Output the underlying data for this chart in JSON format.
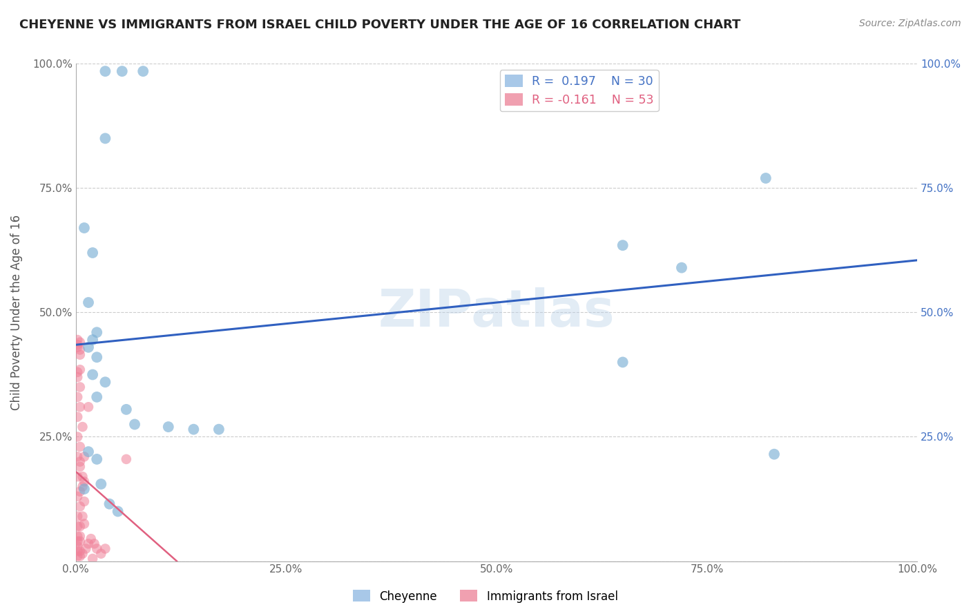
{
  "title": "CHEYENNE VS IMMIGRANTS FROM ISRAEL CHILD POVERTY UNDER THE AGE OF 16 CORRELATION CHART",
  "source": "Source: ZipAtlas.com",
  "ylabel": "Child Poverty Under the Age of 16",
  "xmin": 0.0,
  "xmax": 100.0,
  "ymin": 0.0,
  "ymax": 100.0,
  "x_tick_labels": [
    "0.0%",
    "25.0%",
    "50.0%",
    "75.0%",
    "100.0%"
  ],
  "x_tick_vals": [
    0.0,
    25.0,
    50.0,
    75.0,
    100.0
  ],
  "y_tick_labels": [
    "",
    "25.0%",
    "50.0%",
    "75.0%",
    "100.0%"
  ],
  "y_tick_vals": [
    0.0,
    25.0,
    50.0,
    75.0,
    100.0
  ],
  "y_tick_labels_right": [
    "",
    "25.0%",
    "50.0%",
    "75.0%",
    "100.0%"
  ],
  "legend_entries": [
    {
      "label": "R =  0.197    N = 30",
      "color": "#a8c8e8"
    },
    {
      "label": "R = -0.161    N = 53",
      "color": "#f0a0b0"
    }
  ],
  "legend_labels_bottom": [
    "Cheyenne",
    "Immigrants from Israel"
  ],
  "legend_colors_bottom": [
    "#a8c8e8",
    "#f0a0b0"
  ],
  "watermark": "ZIPatlas",
  "cheyenne_color": "#7bafd4",
  "israel_color": "#f08098",
  "cheyenne_line_color": "#3060c0",
  "israel_line_color": "#e06080",
  "cheyenne_line": [
    0.0,
    43.5,
    100.0,
    60.5
  ],
  "israel_line": [
    0.0,
    18.0,
    12.0,
    0.0
  ],
  "cheyenne_scatter": [
    [
      3.5,
      98.5
    ],
    [
      5.5,
      98.5
    ],
    [
      8.0,
      98.5
    ],
    [
      3.5,
      85.0
    ],
    [
      1.0,
      67.0
    ],
    [
      2.0,
      62.0
    ],
    [
      1.5,
      52.0
    ],
    [
      2.5,
      46.0
    ],
    [
      2.0,
      44.5
    ],
    [
      1.5,
      43.0
    ],
    [
      2.5,
      41.0
    ],
    [
      2.0,
      37.5
    ],
    [
      3.5,
      36.0
    ],
    [
      2.5,
      33.0
    ],
    [
      6.0,
      30.5
    ],
    [
      7.0,
      27.5
    ],
    [
      11.0,
      27.0
    ],
    [
      14.0,
      26.5
    ],
    [
      17.0,
      26.5
    ],
    [
      65.0,
      63.5
    ],
    [
      72.0,
      59.0
    ],
    [
      82.0,
      77.0
    ],
    [
      65.0,
      40.0
    ],
    [
      83.0,
      21.5
    ],
    [
      1.5,
      22.0
    ],
    [
      2.5,
      20.5
    ],
    [
      3.0,
      15.5
    ],
    [
      1.0,
      14.5
    ],
    [
      4.0,
      11.5
    ],
    [
      5.0,
      10.0
    ]
  ],
  "israel_scatter": [
    [
      0.2,
      44.5
    ],
    [
      0.5,
      44.0
    ],
    [
      0.2,
      43.0
    ],
    [
      0.5,
      41.5
    ],
    [
      0.2,
      38.0
    ],
    [
      0.5,
      38.5
    ],
    [
      0.2,
      37.0
    ],
    [
      0.5,
      35.0
    ],
    [
      0.2,
      33.0
    ],
    [
      0.5,
      31.0
    ],
    [
      0.2,
      29.0
    ],
    [
      0.8,
      27.0
    ],
    [
      0.2,
      25.0
    ],
    [
      0.5,
      23.0
    ],
    [
      0.2,
      21.0
    ],
    [
      0.5,
      19.0
    ],
    [
      0.2,
      17.0
    ],
    [
      0.8,
      15.0
    ],
    [
      0.2,
      13.0
    ],
    [
      0.5,
      11.0
    ],
    [
      0.8,
      9.0
    ],
    [
      0.2,
      7.0
    ],
    [
      0.5,
      7.0
    ],
    [
      0.2,
      5.0
    ],
    [
      0.5,
      5.0
    ],
    [
      0.2,
      4.0
    ],
    [
      0.2,
      3.0
    ],
    [
      0.2,
      2.0
    ],
    [
      0.5,
      2.0
    ],
    [
      0.2,
      1.0
    ],
    [
      0.5,
      1.0
    ],
    [
      0.8,
      1.5
    ],
    [
      1.2,
      2.5
    ],
    [
      1.8,
      4.5
    ],
    [
      2.2,
      3.5
    ],
    [
      2.5,
      2.5
    ],
    [
      3.0,
      1.5
    ],
    [
      3.5,
      2.5
    ],
    [
      1.5,
      3.5
    ],
    [
      2.0,
      0.5
    ],
    [
      0.5,
      20.0
    ],
    [
      0.8,
      17.0
    ],
    [
      1.0,
      16.0
    ],
    [
      1.0,
      12.0
    ],
    [
      0.2,
      9.0
    ],
    [
      1.0,
      7.5
    ],
    [
      0.5,
      4.0
    ],
    [
      0.2,
      43.5
    ],
    [
      0.5,
      42.5
    ],
    [
      6.0,
      20.5
    ],
    [
      1.5,
      31.0
    ],
    [
      1.0,
      21.0
    ],
    [
      0.5,
      14.0
    ]
  ],
  "grid_color": "#cccccc",
  "background_color": "#ffffff"
}
